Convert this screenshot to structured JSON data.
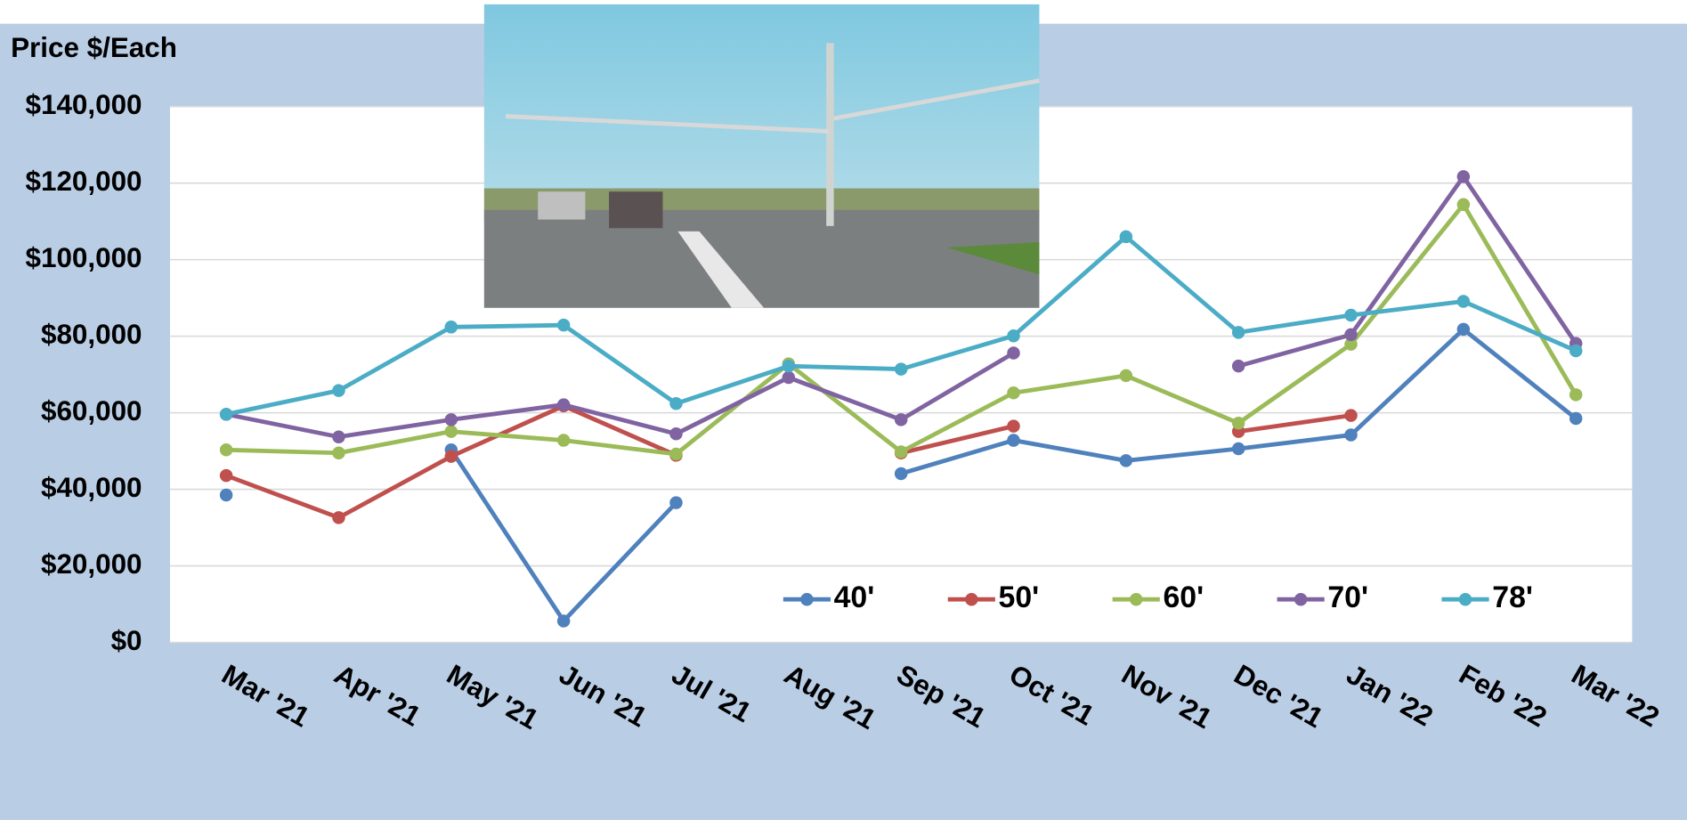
{
  "chart_data": {
    "type": "line",
    "y_label": "Price $/Each",
    "categories": [
      "Mar '21",
      "Apr '21",
      "May '21",
      "Jun '21",
      "Jul '21",
      "Aug '21",
      "Sep '21",
      "Oct '21",
      "Nov '21",
      "Dec '21",
      "Jan '22",
      "Feb '22",
      "Mar '22"
    ],
    "series": [
      {
        "name": "40'",
        "color": "#4f81bd",
        "values": [
          38500,
          null,
          50300,
          5600,
          36500,
          null,
          44100,
          52800,
          47500,
          50600,
          54200,
          81800,
          58500
        ]
      },
      {
        "name": "50'",
        "color": "#c0504d",
        "values": [
          43600,
          32600,
          48600,
          61800,
          48900,
          null,
          49500,
          56500,
          null,
          55100,
          59300,
          null,
          null
        ]
      },
      {
        "name": "60'",
        "color": "#9bbb59",
        "values": [
          50300,
          49500,
          55100,
          52800,
          49200,
          72800,
          49800,
          65200,
          69700,
          57300,
          77900,
          114400,
          64700
        ]
      },
      {
        "name": "70'",
        "color": "#8064a2",
        "values": [
          59600,
          53700,
          58200,
          62100,
          54500,
          69200,
          58200,
          75600,
          null,
          72200,
          80400,
          121700,
          78100
        ]
      },
      {
        "name": "78'",
        "color": "#4bacc6",
        "values": [
          59600,
          65800,
          82400,
          82900,
          62400,
          72200,
          71400,
          80100,
          106000,
          81000,
          85500,
          89100,
          76200
        ]
      }
    ],
    "ylim": [
      0,
      140000
    ],
    "yticks": [
      {
        "value": 0,
        "label": "$0"
      },
      {
        "value": 20000,
        "label": "$20,000"
      },
      {
        "value": 40000,
        "label": "$40,000"
      },
      {
        "value": 60000,
        "label": "$60,000"
      },
      {
        "value": 80000,
        "label": "$80,000"
      },
      {
        "value": 100000,
        "label": "$100,000"
      },
      {
        "value": 120000,
        "label": "$120,000"
      },
      {
        "value": 140000,
        "label": "$140,000"
      }
    ],
    "grid": true,
    "legend": "bottom-right"
  }
}
